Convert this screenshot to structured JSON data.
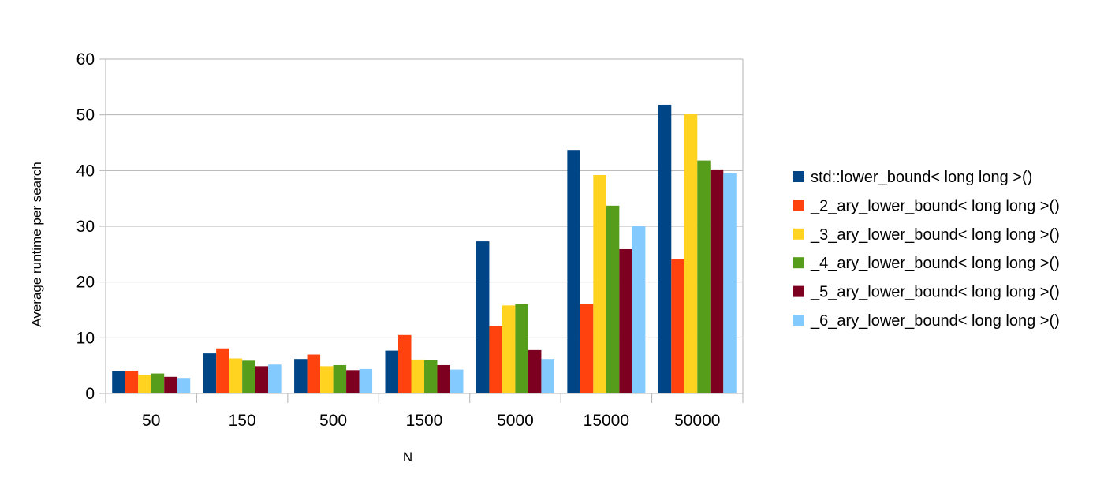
{
  "chart_data": {
    "type": "bar",
    "title": "",
    "xlabel": "N",
    "ylabel": "Average runtime per search",
    "ylim": [
      0,
      60
    ],
    "yticks": [
      0,
      10,
      20,
      30,
      40,
      50,
      60
    ],
    "grid": "horizontal",
    "legend_position": "right",
    "categories": [
      "50",
      "150",
      "500",
      "1500",
      "5000",
      "15000",
      "50000"
    ],
    "series": [
      {
        "name": "std::lower_bound< long long >()",
        "color": "#004586",
        "values": [
          4.0,
          7.2,
          6.2,
          7.7,
          27.3,
          43.7,
          51.8
        ]
      },
      {
        "name": "_2_ary_lower_bound< long long >()",
        "color": "#ff420e",
        "values": [
          4.1,
          8.1,
          7.0,
          10.5,
          12.1,
          16.1,
          24.1
        ]
      },
      {
        "name": "_3_ary_lower_bound< long long >()",
        "color": "#ffd320",
        "values": [
          3.4,
          6.3,
          4.9,
          6.1,
          15.8,
          39.2,
          50.1
        ]
      },
      {
        "name": "_4_ary_lower_bound< long long >()",
        "color": "#579d1c",
        "values": [
          3.6,
          5.9,
          5.1,
          6.0,
          16.0,
          33.7,
          41.8
        ]
      },
      {
        "name": "_5_ary_lower_bound< long long >()",
        "color": "#7e0021",
        "values": [
          3.0,
          4.9,
          4.2,
          5.1,
          7.8,
          25.9,
          40.2
        ]
      },
      {
        "name": "_6_ary_lower_bound< long long >()",
        "color": "#83caff",
        "values": [
          2.8,
          5.2,
          4.4,
          4.3,
          6.2,
          30.0,
          39.5
        ]
      }
    ]
  }
}
